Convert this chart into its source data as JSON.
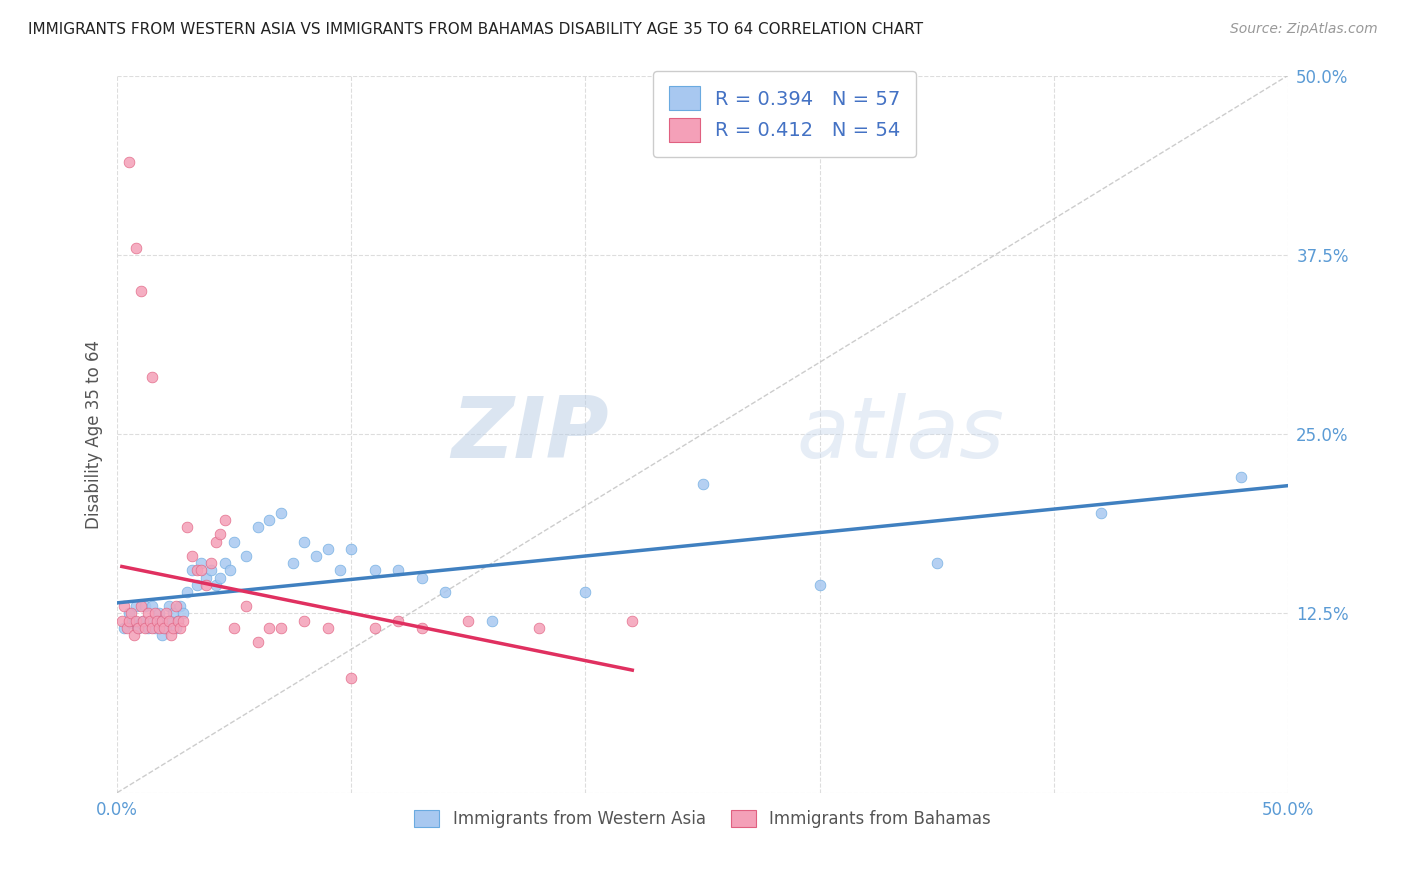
{
  "title": "IMMIGRANTS FROM WESTERN ASIA VS IMMIGRANTS FROM BAHAMAS DISABILITY AGE 35 TO 64 CORRELATION CHART",
  "source": "Source: ZipAtlas.com",
  "ylabel": "Disability Age 35 to 64",
  "xlim": [
    0.0,
    0.5
  ],
  "ylim": [
    0.0,
    0.5
  ],
  "xticks": [
    0.0,
    0.1,
    0.2,
    0.3,
    0.4,
    0.5
  ],
  "yticks": [
    0.0,
    0.125,
    0.25,
    0.375,
    0.5
  ],
  "legend_r1": "R = 0.394",
  "legend_n1": "N = 57",
  "legend_r2": "R = 0.412",
  "legend_n2": "N = 54",
  "color_blue": "#A8C8F0",
  "color_pink": "#F4A0B8",
  "color_edge_blue": "#6AAAE0",
  "color_edge_pink": "#E06080",
  "color_line_blue": "#4080C0",
  "color_line_pink": "#E03060",
  "color_axis_text": "#5B9BD5",
  "color_title": "#222222",
  "color_source": "#999999",
  "color_grid": "#DDDDDD",
  "watermark_zip": "ZIP",
  "watermark_atlas": "atlas",
  "western_asia_x": [
    0.003,
    0.005,
    0.006,
    0.007,
    0.008,
    0.009,
    0.01,
    0.011,
    0.012,
    0.013,
    0.014,
    0.015,
    0.016,
    0.017,
    0.018,
    0.019,
    0.02,
    0.021,
    0.022,
    0.023,
    0.024,
    0.025,
    0.026,
    0.027,
    0.028,
    0.03,
    0.032,
    0.034,
    0.036,
    0.038,
    0.04,
    0.042,
    0.044,
    0.046,
    0.048,
    0.05,
    0.055,
    0.06,
    0.065,
    0.07,
    0.075,
    0.08,
    0.085,
    0.09,
    0.095,
    0.1,
    0.11,
    0.12,
    0.13,
    0.14,
    0.16,
    0.2,
    0.25,
    0.3,
    0.35,
    0.42,
    0.48
  ],
  "western_asia_y": [
    0.115,
    0.125,
    0.118,
    0.12,
    0.13,
    0.115,
    0.118,
    0.12,
    0.13,
    0.115,
    0.12,
    0.13,
    0.115,
    0.12,
    0.125,
    0.11,
    0.12,
    0.115,
    0.13,
    0.12,
    0.125,
    0.115,
    0.12,
    0.13,
    0.125,
    0.14,
    0.155,
    0.145,
    0.16,
    0.15,
    0.155,
    0.145,
    0.15,
    0.16,
    0.155,
    0.175,
    0.165,
    0.185,
    0.19,
    0.195,
    0.16,
    0.175,
    0.165,
    0.17,
    0.155,
    0.17,
    0.155,
    0.155,
    0.15,
    0.14,
    0.12,
    0.14,
    0.215,
    0.145,
    0.16,
    0.195,
    0.22
  ],
  "bahamas_x": [
    0.002,
    0.003,
    0.004,
    0.005,
    0.006,
    0.007,
    0.008,
    0.009,
    0.01,
    0.011,
    0.012,
    0.013,
    0.014,
    0.015,
    0.016,
    0.017,
    0.018,
    0.019,
    0.02,
    0.021,
    0.022,
    0.023,
    0.024,
    0.025,
    0.026,
    0.027,
    0.028,
    0.03,
    0.032,
    0.034,
    0.036,
    0.038,
    0.04,
    0.042,
    0.044,
    0.046,
    0.05,
    0.055,
    0.06,
    0.065,
    0.07,
    0.08,
    0.09,
    0.1,
    0.11,
    0.12,
    0.13,
    0.15,
    0.18,
    0.22,
    0.005,
    0.008,
    0.01,
    0.015
  ],
  "bahamas_y": [
    0.12,
    0.13,
    0.115,
    0.12,
    0.125,
    0.11,
    0.12,
    0.115,
    0.13,
    0.12,
    0.115,
    0.125,
    0.12,
    0.115,
    0.125,
    0.12,
    0.115,
    0.12,
    0.115,
    0.125,
    0.12,
    0.11,
    0.115,
    0.13,
    0.12,
    0.115,
    0.12,
    0.185,
    0.165,
    0.155,
    0.155,
    0.145,
    0.16,
    0.175,
    0.18,
    0.19,
    0.115,
    0.13,
    0.105,
    0.115,
    0.115,
    0.12,
    0.115,
    0.08,
    0.115,
    0.12,
    0.115,
    0.12,
    0.115,
    0.12,
    0.44,
    0.38,
    0.35,
    0.29
  ]
}
